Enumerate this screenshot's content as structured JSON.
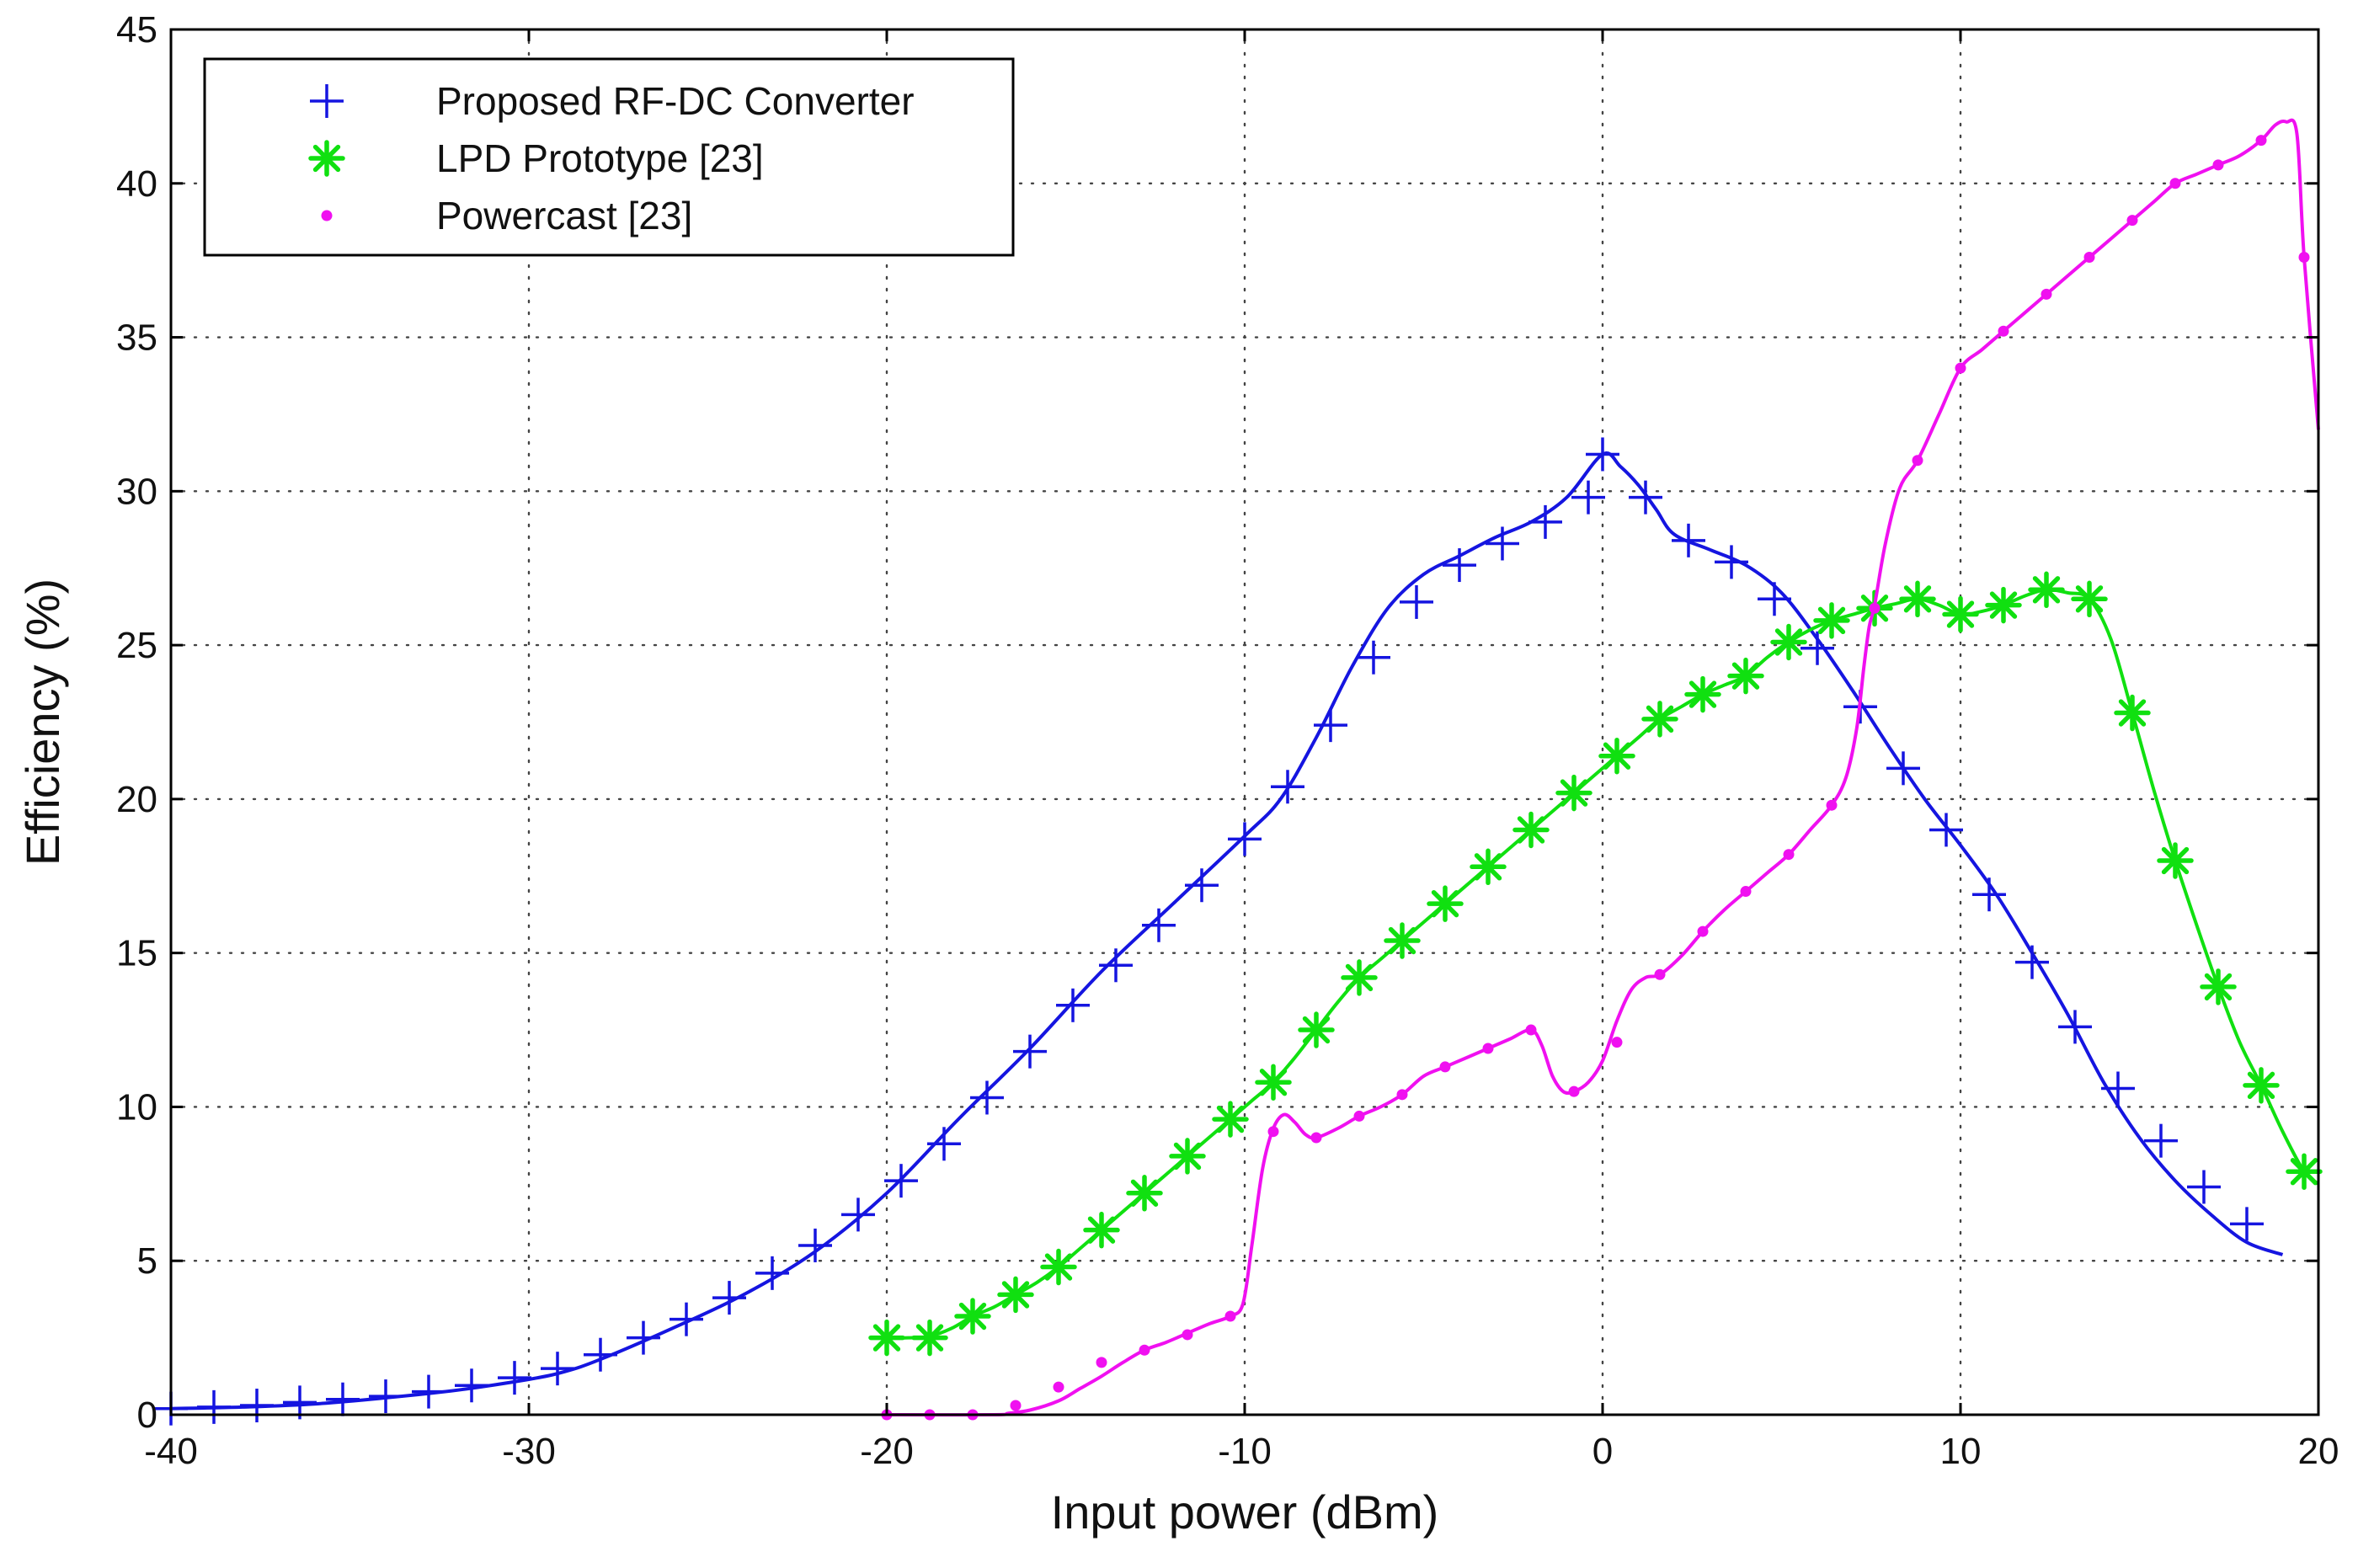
{
  "chart_data": {
    "type": "line",
    "title": "",
    "xlabel": "Input power (dBm)",
    "ylabel": "Efficiency (%)",
    "xlim": [
      -40,
      20
    ],
    "ylim": [
      0,
      45
    ],
    "x_ticks": [
      -40,
      -30,
      -20,
      -10,
      0,
      10,
      20
    ],
    "y_ticks": [
      0,
      5,
      10,
      15,
      20,
      25,
      30,
      35,
      40,
      45
    ],
    "grid": true,
    "legend_position": "top-left",
    "series": [
      {
        "name": "Proposed RF-DC Converter",
        "color": "#1515e0",
        "marker": "plus",
        "x": [
          -40,
          -38.8,
          -37.6,
          -36.4,
          -35.2,
          -34,
          -32.8,
          -31.6,
          -30.4,
          -29.2,
          -28,
          -26.8,
          -25.6,
          -24.4,
          -23.2,
          -22,
          -20.8,
          -19.6,
          -18.4,
          -17.2,
          -16,
          -14.8,
          -13.6,
          -12.4,
          -11.2,
          -10,
          -8.8,
          -7.6,
          -6.4,
          -5.2,
          -4,
          -2.8,
          -1.6,
          -0.4,
          0,
          1.2,
          2.4,
          3.6,
          4.8,
          6,
          7.2,
          8.4,
          9.6,
          10.8,
          12,
          13.2,
          14.4,
          15.6,
          16.8,
          18
        ],
        "y": [
          0.2,
          0.25,
          0.3,
          0.4,
          0.5,
          0.6,
          0.75,
          0.95,
          1.2,
          1.5,
          1.95,
          2.5,
          3.1,
          3.8,
          4.6,
          5.5,
          6.5,
          7.6,
          8.8,
          10.3,
          11.8,
          13.3,
          14.6,
          15.9,
          17.2,
          18.7,
          20.4,
          22.4,
          24.6,
          26.4,
          27.6,
          28.3,
          29.0,
          29.8,
          31.2,
          29.8,
          28.4,
          27.7,
          26.5,
          24.9,
          23.0,
          21.0,
          19.0,
          16.9,
          14.7,
          12.6,
          10.6,
          8.9,
          7.4,
          6.2
        ],
        "curve_x": [
          -40,
          -38,
          -36,
          -34,
          -32,
          -30,
          -29,
          -28,
          -26,
          -24,
          -22,
          -20,
          -18,
          -16,
          -14,
          -12,
          -10,
          -9,
          -8,
          -7,
          -6,
          -5,
          -4,
          -3,
          -2,
          -1,
          0,
          0.5,
          1,
          1.5,
          2,
          3,
          4,
          5,
          6,
          7,
          8,
          9,
          10,
          11,
          12,
          13,
          14,
          15,
          16,
          17,
          18,
          19
        ],
        "curve_y": [
          0.2,
          0.25,
          0.35,
          0.55,
          0.8,
          1.15,
          1.4,
          1.8,
          2.8,
          3.9,
          5.3,
          7.2,
          9.6,
          11.9,
          14.4,
          16.6,
          18.8,
          20.0,
          22.0,
          24.3,
          26.2,
          27.3,
          27.9,
          28.5,
          29.0,
          29.8,
          31.2,
          30.8,
          30.2,
          29.4,
          28.6,
          28.1,
          27.6,
          26.7,
          25.2,
          23.5,
          21.7,
          20.0,
          18.5,
          16.9,
          15.0,
          13.0,
          10.8,
          9.0,
          7.6,
          6.5,
          5.6,
          5.2
        ]
      },
      {
        "name": "LPD Prototype [23]",
        "color": "#10e010",
        "marker": "asterisk",
        "x": [
          -20,
          -18.8,
          -17.6,
          -16.4,
          -15.2,
          -14,
          -12.8,
          -11.6,
          -10.4,
          -9.2,
          -8,
          -6.8,
          -5.6,
          -4.4,
          -3.2,
          -2,
          -0.8,
          0.4,
          1.6,
          2.8,
          4,
          5.2,
          6.4,
          7.6,
          8.8,
          10,
          11.2,
          12.4,
          13.6,
          14.8,
          16,
          17.2,
          18.4,
          19.6
        ],
        "y": [
          2.5,
          2.5,
          3.2,
          3.9,
          4.8,
          6.0,
          7.2,
          8.4,
          9.6,
          10.8,
          12.5,
          14.2,
          15.4,
          16.6,
          17.8,
          19.0,
          20.2,
          21.4,
          22.6,
          23.4,
          24.0,
          25.1,
          25.8,
          26.2,
          26.5,
          26.0,
          26.3,
          26.8,
          26.5,
          22.8,
          18.0,
          13.9,
          10.7,
          7.9
        ],
        "curve_x": [
          -20,
          -19.4,
          -18.8,
          -18.2,
          -17.6,
          -17,
          -16.4,
          -15.8,
          -15.2,
          -14.6,
          -14,
          -13.4,
          -12.8,
          -12.2,
          -11.6,
          -11,
          -10.4,
          -9.8,
          -9.2,
          -8.6,
          -8,
          -7.4,
          -6.8,
          -6.2,
          -5.6,
          -5,
          -4.4,
          -3.8,
          -3.2,
          -2.6,
          -2,
          -1.4,
          -0.8,
          -0.2,
          0.4,
          1,
          1.6,
          2.2,
          2.8,
          3.4,
          4,
          4.6,
          5.2,
          5.8,
          6.4,
          7,
          7.6,
          8.2,
          8.8,
          9.4,
          10,
          10.6,
          11.2,
          11.8,
          12.4,
          13,
          13.6,
          14.2,
          14.8,
          15.4,
          16,
          16.6,
          17.2,
          17.8,
          18.4,
          19,
          19.6,
          20
        ],
        "curve_y": [
          2.5,
          2.5,
          2.55,
          2.8,
          3.2,
          3.5,
          3.9,
          4.3,
          4.8,
          5.4,
          6.0,
          6.6,
          7.2,
          7.8,
          8.4,
          9.0,
          9.6,
          10.2,
          10.8,
          11.6,
          12.5,
          13.4,
          14.2,
          14.8,
          15.4,
          16.0,
          16.6,
          17.2,
          17.8,
          18.4,
          19.0,
          19.6,
          20.2,
          20.8,
          21.4,
          22.0,
          22.6,
          23.0,
          23.4,
          23.7,
          24.0,
          24.6,
          25.1,
          25.5,
          25.8,
          26.0,
          26.2,
          26.35,
          26.5,
          26.3,
          26.0,
          26.1,
          26.3,
          26.6,
          26.8,
          26.7,
          26.5,
          25.2,
          22.8,
          20.3,
          18.0,
          15.9,
          13.9,
          12.1,
          10.7,
          9.2,
          7.9,
          7.5
        ]
      },
      {
        "name": "Powercast [23]",
        "color": "#f010f0",
        "marker": "dot",
        "x": [
          -20,
          -18.8,
          -17.6,
          -16.4,
          -15.2,
          -14,
          -12.8,
          -11.6,
          -10.4,
          -9.2,
          -8,
          -6.8,
          -5.6,
          -4.4,
          -3.2,
          -2,
          -0.8,
          0.4,
          1.6,
          2.8,
          4,
          5.2,
          6.4,
          7.6,
          8.8,
          10,
          11.2,
          12.4,
          13.6,
          14.8,
          16,
          17.2,
          18.4,
          19.6
        ],
        "y": [
          0,
          0,
          0,
          0.3,
          0.9,
          1.7,
          2.1,
          2.6,
          3.2,
          9.2,
          9.0,
          9.7,
          10.4,
          11.3,
          11.9,
          12.5,
          10.5,
          12.1,
          14.3,
          15.7,
          17.0,
          18.2,
          19.8,
          26.2,
          31.0,
          34.0,
          35.2,
          36.4,
          37.6,
          38.8,
          40.0,
          40.6,
          41.4,
          37.6
        ],
        "curve_x": [
          -20,
          -17,
          -16.6,
          -16,
          -15.2,
          -14.6,
          -14,
          -13.4,
          -12.8,
          -12.2,
          -11.6,
          -11,
          -10.4,
          -10.05,
          -9.8,
          -9.5,
          -9.2,
          -8.9,
          -8.6,
          -8.3,
          -8,
          -7.4,
          -6.8,
          -6.2,
          -5.6,
          -5,
          -4.4,
          -3.8,
          -3.2,
          -2.6,
          -2,
          -1.7,
          -1.4,
          -1.1,
          -0.8,
          -0.4,
          0,
          0.4,
          0.8,
          1.2,
          1.6,
          2.2,
          2.8,
          3.4,
          4,
          4.6,
          5.2,
          5.8,
          6.4,
          6.8,
          7.1,
          7.3,
          7.45,
          7.6,
          7.9,
          8.3,
          8.8,
          9.4,
          10,
          10.6,
          11.2,
          11.8,
          12.4,
          13,
          13.6,
          14.2,
          14.8,
          15.4,
          16,
          16.6,
          17.2,
          17.8,
          18.4,
          18.8,
          19.1,
          19.4,
          19.6,
          20
        ],
        "curve_y": [
          0,
          0,
          0.05,
          0.15,
          0.45,
          0.85,
          1.25,
          1.7,
          2.1,
          2.35,
          2.65,
          2.95,
          3.2,
          3.6,
          5.5,
          8.0,
          9.3,
          9.75,
          9.5,
          9.1,
          9.0,
          9.3,
          9.7,
          10.0,
          10.4,
          11.0,
          11.3,
          11.6,
          11.9,
          12.2,
          12.5,
          12.0,
          11.0,
          10.5,
          10.5,
          10.8,
          11.5,
          12.8,
          13.8,
          14.2,
          14.3,
          14.9,
          15.7,
          16.4,
          17.0,
          17.6,
          18.2,
          19.0,
          19.8,
          20.7,
          22.3,
          24.3,
          25.6,
          26.3,
          28.3,
          30.1,
          31.0,
          32.5,
          34.0,
          34.6,
          35.2,
          35.8,
          36.4,
          37.0,
          37.6,
          38.2,
          38.8,
          39.4,
          40.0,
          40.3,
          40.6,
          40.9,
          41.4,
          41.9,
          42.0,
          41.6,
          37.6,
          32.0
        ]
      }
    ]
  }
}
